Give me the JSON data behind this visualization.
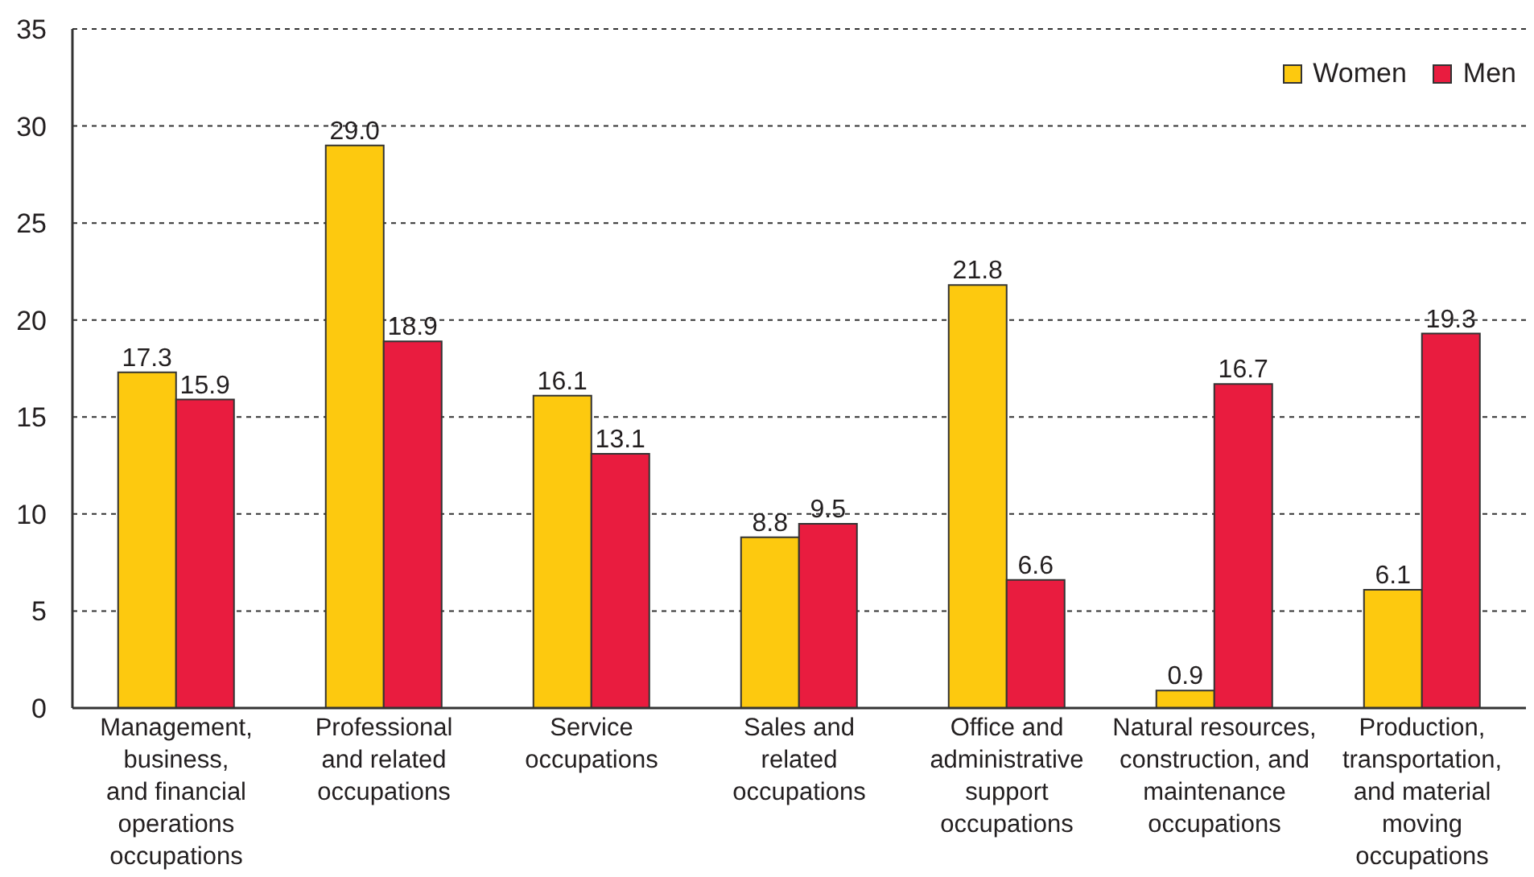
{
  "chart_data": {
    "type": "bar",
    "categories": [
      "Management,\nbusiness,\nand financial\noperations\noccupations",
      "Professional\nand related\noccupations",
      "Service\noccupations",
      "Sales and\nrelated\noccupations",
      "Office and\nadministrative\nsupport\noccupations",
      "Natural resources,\nconstruction, and\nmaintenance\noccupations",
      "Production,\ntransportation,\nand material\nmoving\noccupations"
    ],
    "series": [
      {
        "name": "Women",
        "color": "#fdc90f",
        "values": [
          17.3,
          29.0,
          16.1,
          8.8,
          21.8,
          0.9,
          6.1
        ],
        "value_labels": [
          "17.3",
          "29.0",
          "16.1",
          "8.8",
          "21.8",
          "0.9",
          "6.1"
        ]
      },
      {
        "name": "Men",
        "color": "#e91c3f",
        "values": [
          15.9,
          18.9,
          13.1,
          9.5,
          6.6,
          16.7,
          19.3
        ],
        "value_labels": [
          "15.9",
          "18.9",
          "13.1",
          "9.5",
          "6.6",
          "16.7",
          "19.3"
        ]
      }
    ],
    "ylim": [
      0,
      35
    ],
    "yticks": [
      0,
      5,
      10,
      15,
      20,
      25,
      30,
      35
    ],
    "grid": "y",
    "legend": "top right"
  }
}
